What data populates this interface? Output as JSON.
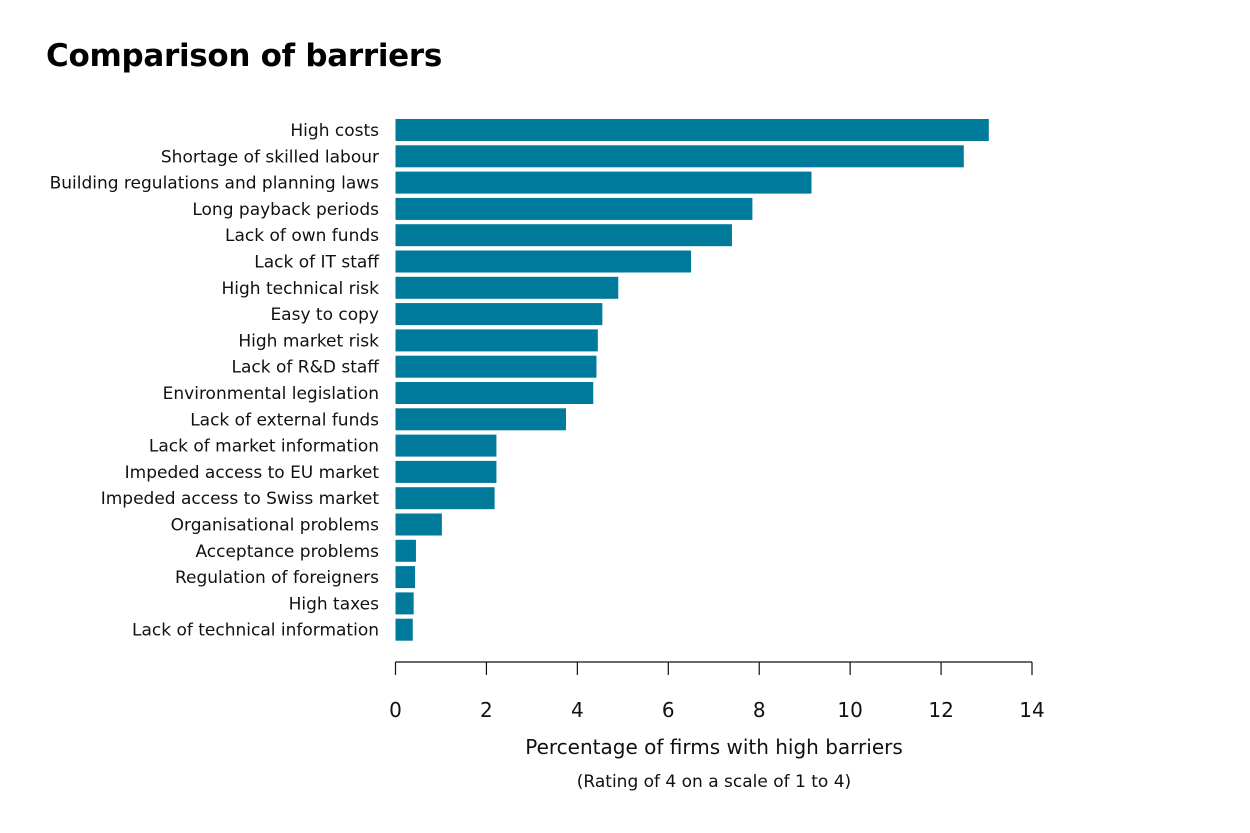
{
  "chart_data": {
    "type": "bar",
    "orientation": "horizontal",
    "title": "Comparison of barriers",
    "xlabel": "Percentage of firms with high barriers",
    "xlabel_note": "(Rating of 4 on a scale of 1 to 4)",
    "ylabel": "",
    "xlim": [
      0,
      14
    ],
    "xticks": [
      0,
      2,
      4,
      6,
      8,
      10,
      12,
      14
    ],
    "grid": false,
    "bar_color": "#007a9a",
    "categories": [
      "High costs",
      "Shortage of skilled labour",
      "Building regulations and planning laws",
      "Long payback periods",
      "Lack of own funds",
      "Lack of IT staff",
      "High technical risk",
      "Easy to copy",
      "High market risk",
      "Lack of R&D staff",
      "Environmental legislation",
      "Lack of external funds",
      "Lack of market information",
      "Impeded access to EU market",
      "Impeded access to Swiss market",
      "Organisational problems",
      "Acceptance problems",
      "Regulation of foreigners",
      "High taxes",
      "Lack of technical information"
    ],
    "values": [
      13.05,
      12.5,
      9.15,
      7.85,
      7.4,
      6.5,
      4.9,
      4.55,
      4.45,
      4.42,
      4.35,
      3.75,
      2.22,
      2.22,
      2.18,
      1.02,
      0.45,
      0.43,
      0.4,
      0.38
    ]
  }
}
